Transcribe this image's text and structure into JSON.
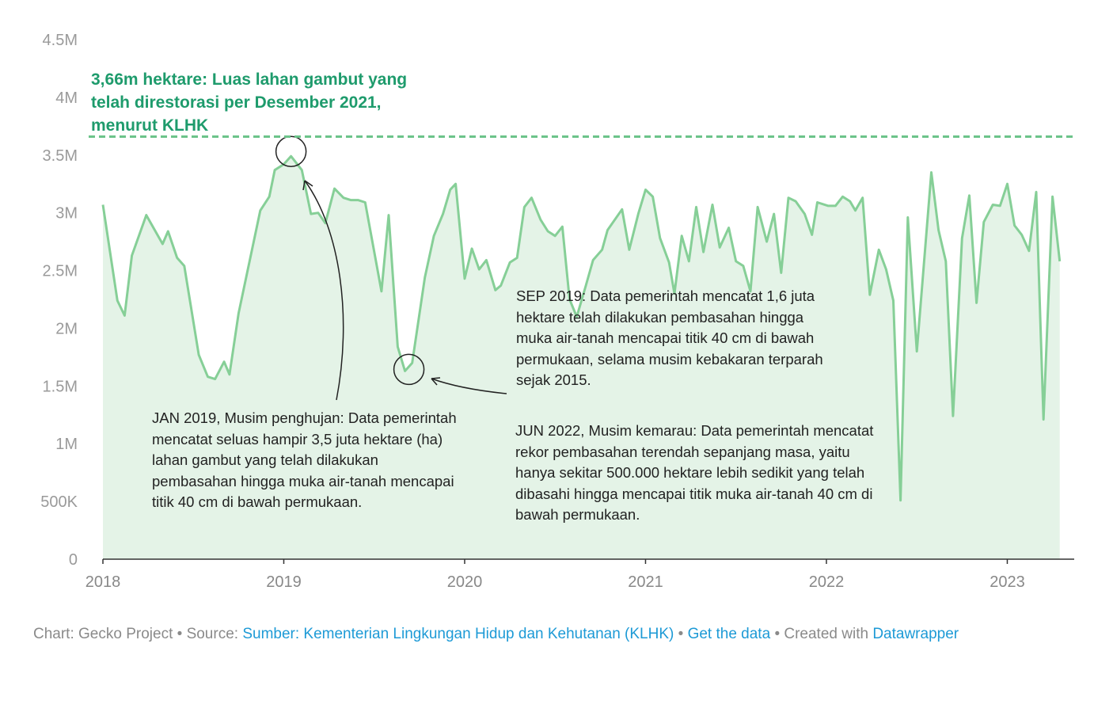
{
  "chart_data": {
    "type": "area",
    "color": "#86cf97",
    "fill": "#e4f3e7",
    "x": [
      2018.0,
      2018.08,
      2018.12,
      2018.16,
      2018.24,
      2018.33,
      2018.36,
      2018.41,
      2018.45,
      2018.53,
      2018.58,
      2018.62,
      2018.67,
      2018.7,
      2018.75,
      2018.87,
      2018.92,
      2018.95,
      2019.0,
      2019.04,
      2019.1,
      2019.15,
      2019.19,
      2019.23,
      2019.28,
      2019.33,
      2019.37,
      2019.41,
      2019.45,
      2019.54,
      2019.58,
      2019.63,
      2019.67,
      2019.71,
      2019.78,
      2019.83,
      2019.88,
      2019.92,
      2019.95,
      2020.0,
      2020.04,
      2020.08,
      2020.12,
      2020.17,
      2020.2,
      2020.25,
      2020.29,
      2020.33,
      2020.37,
      2020.42,
      2020.46,
      2020.5,
      2020.54,
      2020.58,
      2020.62,
      2020.67,
      2020.71,
      2020.76,
      2020.79,
      2020.87,
      2020.91,
      2020.96,
      2021.0,
      2021.04,
      2021.08,
      2021.13,
      2021.16,
      2021.2,
      2021.24,
      2021.28,
      2021.32,
      2021.37,
      2021.41,
      2021.46,
      2021.5,
      2021.54,
      2021.58,
      2021.62,
      2021.67,
      2021.71,
      2021.75,
      2021.79,
      2021.83,
      2021.88,
      2021.92,
      2021.95,
      2022.01,
      2022.05,
      2022.09,
      2022.13,
      2022.16,
      2022.2,
      2022.24,
      2022.29,
      2022.33,
      2022.37,
      2022.41,
      2022.45,
      2022.5,
      2022.58,
      2022.62,
      2022.66,
      2022.7,
      2022.75,
      2022.79,
      2022.83,
      2022.87,
      2022.92,
      2022.96,
      2023.0,
      2023.04,
      2023.08,
      2023.12,
      2023.16,
      2023.2,
      2023.25,
      2023.29
    ],
    "values": [
      3070000,
      2240000,
      2110000,
      2630000,
      2980000,
      2730000,
      2840000,
      2610000,
      2540000,
      1770000,
      1580000,
      1560000,
      1710000,
      1600000,
      2130000,
      3020000,
      3140000,
      3370000,
      3420000,
      3490000,
      3370000,
      2990000,
      3000000,
      2910000,
      3210000,
      3130000,
      3110000,
      3110000,
      3090000,
      2320000,
      2980000,
      1840000,
      1630000,
      1700000,
      2440000,
      2800000,
      2990000,
      3200000,
      3250000,
      2430000,
      2690000,
      2510000,
      2590000,
      2330000,
      2370000,
      2570000,
      2610000,
      3050000,
      3130000,
      2940000,
      2840000,
      2800000,
      2880000,
      2250000,
      2100000,
      2370000,
      2590000,
      2680000,
      2850000,
      3030000,
      2680000,
      2990000,
      3200000,
      3140000,
      2780000,
      2570000,
      2300000,
      2800000,
      2580000,
      3050000,
      2660000,
      3070000,
      2700000,
      2870000,
      2580000,
      2540000,
      2320000,
      3050000,
      2750000,
      2990000,
      2480000,
      3130000,
      3100000,
      2990000,
      2810000,
      3090000,
      3060000,
      3060000,
      3140000,
      3100000,
      3020000,
      3130000,
      2290000,
      2680000,
      2510000,
      2240000,
      510000,
      2960000,
      1800000,
      3350000,
      2850000,
      2580000,
      1240000,
      2780000,
      3150000,
      2220000,
      2920000,
      3070000,
      3060000,
      3250000,
      2890000,
      2810000,
      2670000,
      3180000,
      1210000,
      3140000,
      2580000
    ],
    "xlim": [
      2018,
      2023.37
    ],
    "xticks": [
      2018,
      2019,
      2020,
      2021,
      2022,
      2023
    ],
    "ylim": [
      0,
      4500000
    ],
    "yticks": [
      0,
      {
        "value": 500000,
        "label": "500K"
      },
      {
        "value": 1000000,
        "label": "1M"
      },
      {
        "value": 1500000,
        "label": "1.5M"
      },
      {
        "value": 2000000,
        "label": "2M"
      },
      {
        "value": 2500000,
        "label": "2.5M"
      },
      {
        "value": 3000000,
        "label": "3M"
      },
      {
        "value": 3500000,
        "label": "3.5M"
      },
      {
        "value": 4000000,
        "label": "4M"
      },
      {
        "value": 4500000,
        "label": "4.5M"
      }
    ],
    "grid": false,
    "reference_line": {
      "value": 3660000,
      "label": "3,66m hektare: Luas lahan gambut yang telah direstorasi per Desember 2021, menurut KLHK",
      "color": "#6cc48a"
    },
    "annotations": [
      {
        "text": "JAN 2019, Musim penghujan: Data pemerintah mencatat seluas hampir 3,5 juta hektare (ha) lahan gambut yang telah dilakukan pembasahan hingga muka air-tanah mencapai titik 40 cm di bawah permukaan."
      },
      {
        "text": "SEP 2019: Data pemerintah mencatat 1,6 juta hektare telah dilakukan pembasahan hingga muka air-tanah mencapai titik 40 cm di bawah permukaan, selama musim kebakaran terparah sejak 2015."
      },
      {
        "text": "JUN 2022, Musim kemarau: Data pemerintah mencatat rekor pembasahan terendah sepanjang masa, yaitu hanya sekitar 500.000 hektare lebih sedikit yang telah dibasahi hingga mencapai titik muka air-tanah 40 cm di bawah permukaan."
      }
    ],
    "footer": {
      "chart": "Chart: Gecko Project",
      "separator": "•",
      "source_label": "Source:",
      "source": "Sumber: Kementerian Lingkungan Hidup dan Kehutanan (KLHK)",
      "get_data": "Get the data",
      "created_with": "Created with",
      "tool": "Datawrapper"
    }
  }
}
